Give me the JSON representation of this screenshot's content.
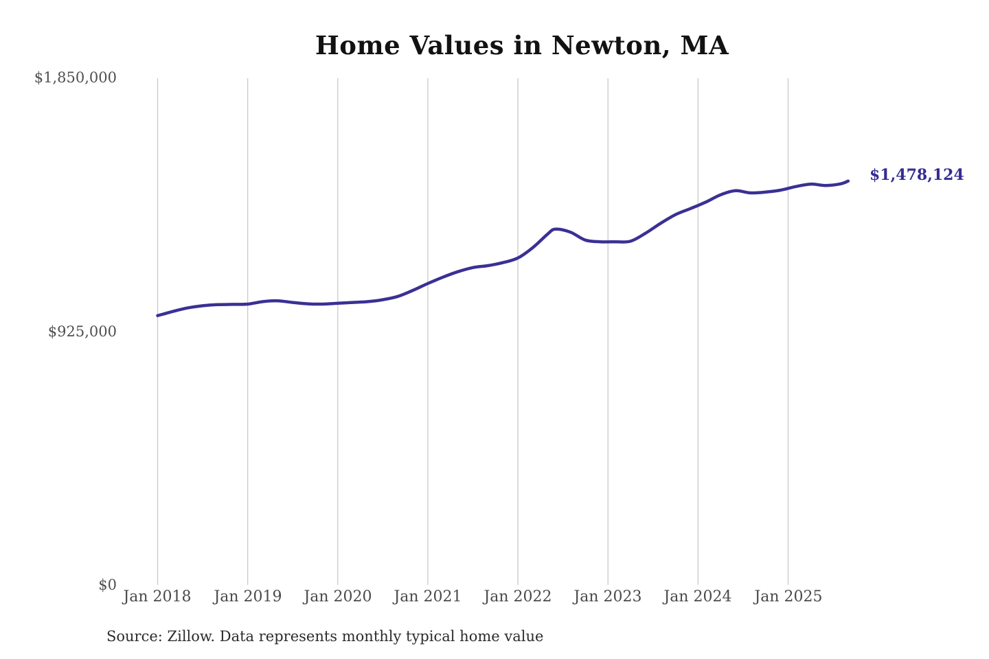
{
  "colors": {
    "line": "#3a3094",
    "grid": "#c9c9c9",
    "title_text": "#121212",
    "end_label_text": "#342c93"
  },
  "chart_data": {
    "type": "line",
    "title": "Home Values in Newton, MA",
    "xlabel": "",
    "ylabel": "",
    "ylim": [
      0,
      1850000
    ],
    "grid": "vertical-only",
    "legend": "none",
    "line_color": "#3a3094",
    "grid_color": "#c9c9c9",
    "x_tick_labels": [
      "Jan 2018",
      "Jan 2019",
      "Jan 2020",
      "Jan 2021",
      "Jan 2022",
      "Jan 2023",
      "Jan 2024",
      "Jan 2025"
    ],
    "y_tick_labels": [
      "$1,850,000",
      "$925,000",
      "$0"
    ],
    "y_tick_values": [
      1850000,
      925000,
      0
    ],
    "final_value": 1478124,
    "final_value_label": "$1,478,124",
    "source": "Source: Zillow. Data represents monthly typical home value",
    "series": [
      {
        "name": "Typical home value",
        "color": "#3a3094",
        "points": [
          [
            "2018-01",
            988000
          ],
          [
            "2018-03",
            1003000
          ],
          [
            "2018-05",
            1016000
          ],
          [
            "2018-07",
            1024000
          ],
          [
            "2018-09",
            1028000
          ],
          [
            "2018-11",
            1029000
          ],
          [
            "2019-01",
            1030000
          ],
          [
            "2019-03",
            1039000
          ],
          [
            "2019-05",
            1042000
          ],
          [
            "2019-07",
            1036000
          ],
          [
            "2019-09",
            1031000
          ],
          [
            "2019-11",
            1030000
          ],
          [
            "2020-01",
            1033000
          ],
          [
            "2020-03",
            1036000
          ],
          [
            "2020-05",
            1039000
          ],
          [
            "2020-07",
            1046000
          ],
          [
            "2020-09",
            1058000
          ],
          [
            "2020-11",
            1080000
          ],
          [
            "2021-01",
            1105000
          ],
          [
            "2021-03",
            1128000
          ],
          [
            "2021-05",
            1148000
          ],
          [
            "2021-07",
            1163000
          ],
          [
            "2021-09",
            1170000
          ],
          [
            "2021-11",
            1181000
          ],
          [
            "2022-01",
            1198000
          ],
          [
            "2022-03",
            1236000
          ],
          [
            "2022-05",
            1286000
          ],
          [
            "2022-06",
            1303000
          ],
          [
            "2022-08",
            1292000
          ],
          [
            "2022-10",
            1263000
          ],
          [
            "2022-12",
            1257000
          ],
          [
            "2023-02",
            1257000
          ],
          [
            "2023-04",
            1259000
          ],
          [
            "2023-06",
            1288000
          ],
          [
            "2023-08",
            1324000
          ],
          [
            "2023-10",
            1356000
          ],
          [
            "2023-12",
            1378000
          ],
          [
            "2024-02",
            1401000
          ],
          [
            "2024-04",
            1428000
          ],
          [
            "2024-06",
            1443000
          ],
          [
            "2024-08",
            1435000
          ],
          [
            "2024-10",
            1438000
          ],
          [
            "2024-12",
            1445000
          ],
          [
            "2025-02",
            1458000
          ],
          [
            "2025-04",
            1467000
          ],
          [
            "2025-06",
            1462000
          ],
          [
            "2025-08",
            1468000
          ],
          [
            "2025-09",
            1478124
          ]
        ]
      }
    ]
  }
}
